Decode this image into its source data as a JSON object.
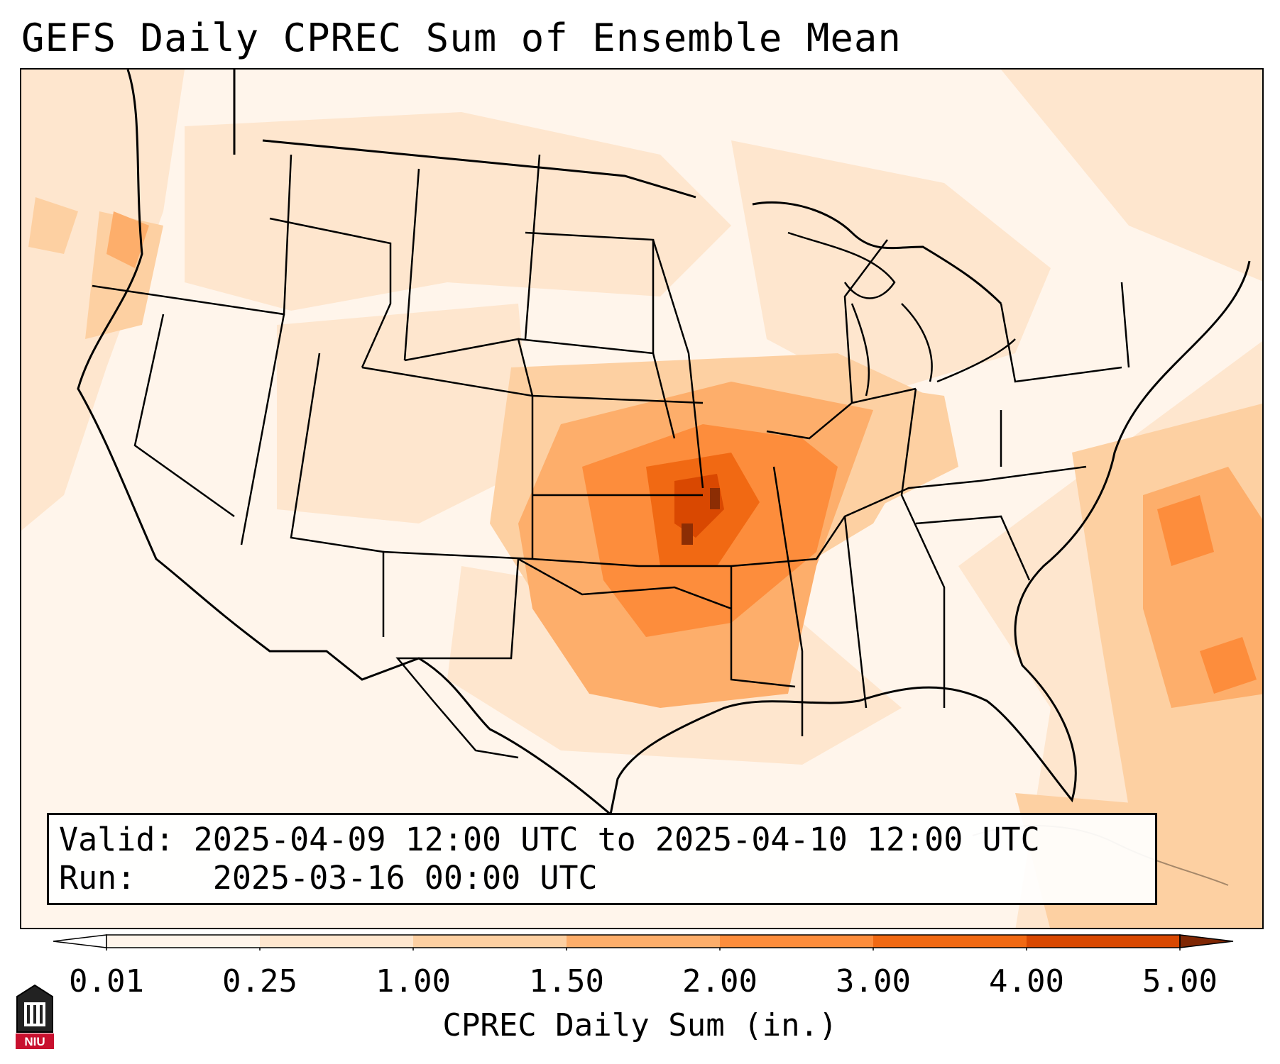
{
  "title": "GEFS Daily CPREC Sum of Ensemble Mean",
  "info": {
    "valid_label": "Valid:",
    "valid_value": "2025-04-09 12:00 UTC to 2025-04-10 12:00 UTC",
    "run_label": "Run:",
    "run_value": "2025-03-16 00:00 UTC"
  },
  "colorbar": {
    "title": "CPREC Daily Sum (in.)",
    "levels": [
      "0.01",
      "0.25",
      "1.00",
      "1.50",
      "2.00",
      "3.00",
      "4.00",
      "5.00"
    ],
    "colors": [
      "#fff5eb",
      "#fee6ce",
      "#fdd0a2",
      "#fdae6b",
      "#fd8d3c",
      "#f16913",
      "#d94801",
      "#8c2d04"
    ],
    "under_color": "#ffffff",
    "over_color": "#7f2704"
  },
  "logo": {
    "text": "NIU",
    "name": "Northern Illinois University"
  }
}
